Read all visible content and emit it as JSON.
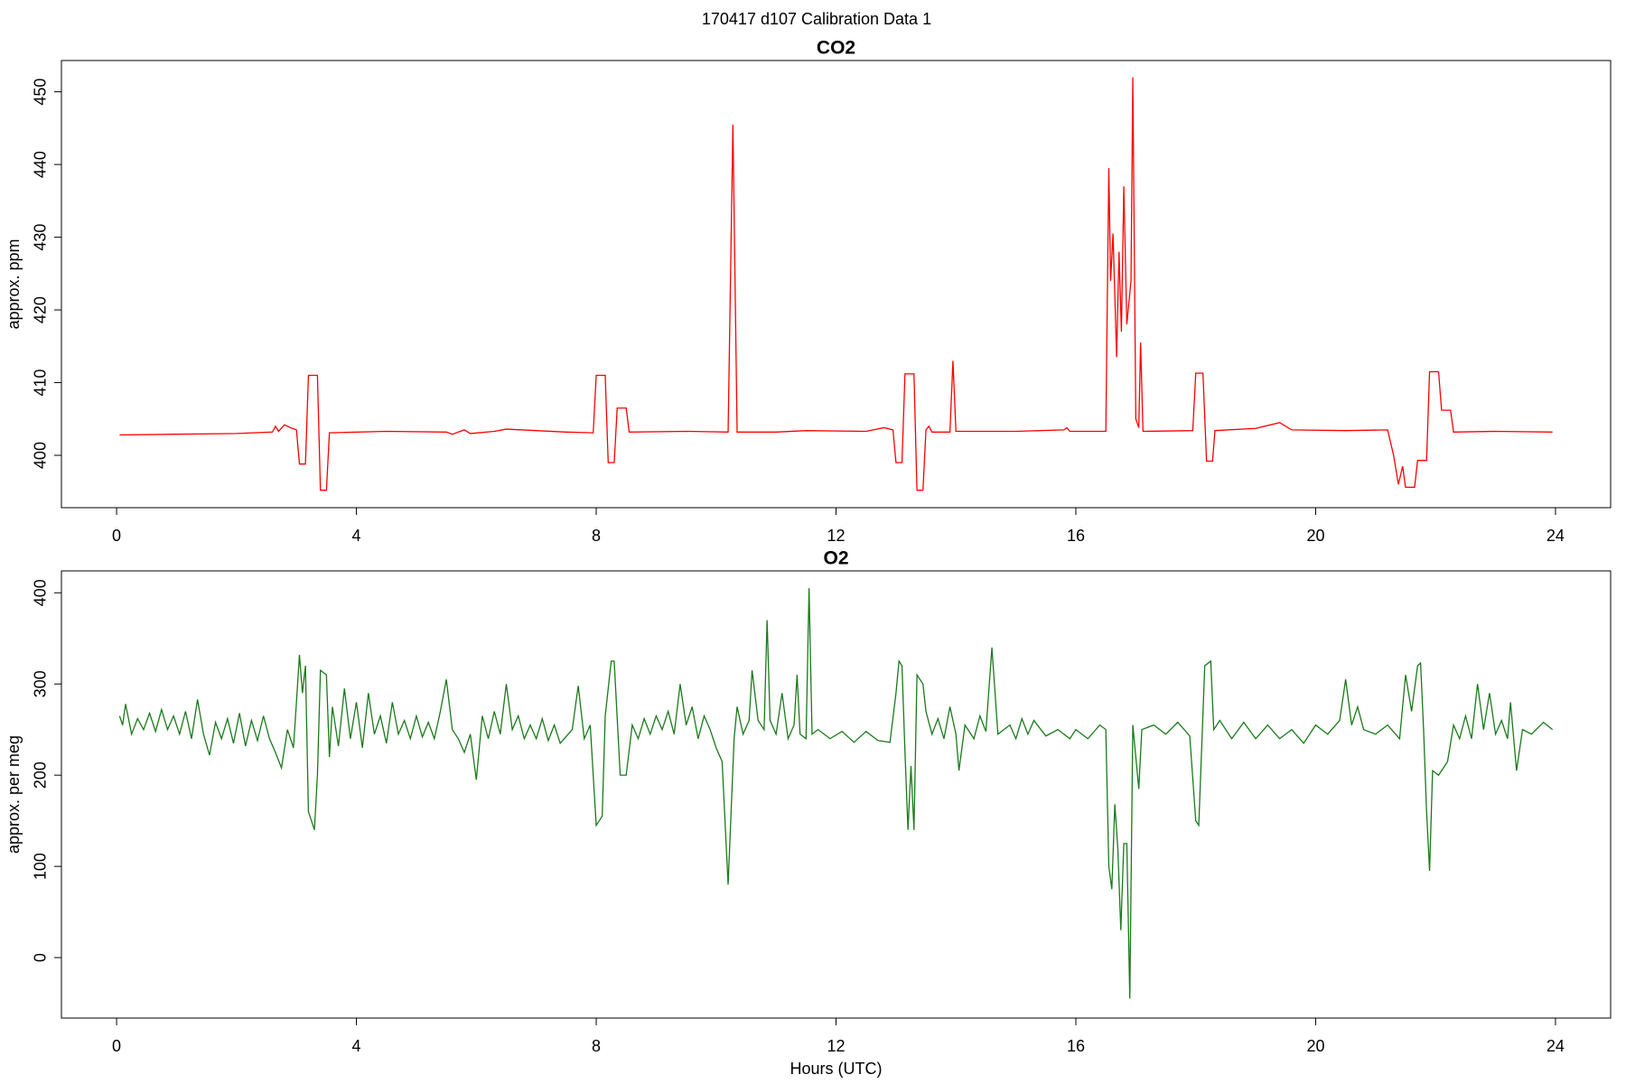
{
  "title": "170417   d107   Calibration Data 1",
  "chart_data": [
    {
      "type": "line",
      "title": "CO2",
      "ylabel": "approx. ppm",
      "color": "#ff0000",
      "xlim": [
        -0.92,
        24.92
      ],
      "xticks": [
        0,
        4,
        8,
        12,
        16,
        20,
        24
      ],
      "ylim": [
        392.8,
        454.3
      ],
      "yticks": [
        400,
        410,
        420,
        430,
        440,
        450
      ],
      "x": [
        0.05,
        1,
        2,
        2.6,
        2.65,
        2.7,
        2.8,
        2.9,
        3.0,
        3.05,
        3.15,
        3.2,
        3.35,
        3.4,
        3.5,
        3.55,
        4.5,
        5.5,
        5.6,
        5.8,
        5.9,
        6.3,
        6.5,
        7,
        7.5,
        7.95,
        8.0,
        8.15,
        8.2,
        8.3,
        8.35,
        8.5,
        8.55,
        9.5,
        10.2,
        10.28,
        10.35,
        11,
        11.5,
        12.5,
        12.8,
        12.95,
        13.0,
        13.1,
        13.15,
        13.3,
        13.35,
        13.45,
        13.5,
        13.55,
        13.6,
        13.9,
        13.95,
        14.0,
        15,
        15.8,
        15.85,
        15.9,
        16.5,
        16.55,
        16.58,
        16.62,
        16.68,
        16.72,
        16.76,
        16.8,
        16.85,
        16.92,
        16.95,
        17.0,
        17.05,
        17.08,
        17.12,
        17.95,
        18.0,
        18.12,
        18.18,
        18.28,
        18.32,
        19,
        19.4,
        19.6,
        20.5,
        21.2,
        21.3,
        21.38,
        21.45,
        21.5,
        21.65,
        21.7,
        21.85,
        21.9,
        22.05,
        22.1,
        22.25,
        22.3,
        23,
        23.95
      ],
      "values": [
        402.8,
        402.9,
        403.0,
        403.2,
        404,
        403.3,
        404.2,
        403.8,
        403.5,
        398.8,
        398.8,
        411,
        411,
        395.2,
        395.2,
        403.1,
        403.3,
        403.2,
        402.9,
        403.5,
        403,
        403.3,
        403.6,
        403.4,
        403.2,
        403.1,
        411,
        411,
        399,
        399,
        406.5,
        406.5,
        403.2,
        403.3,
        403.2,
        445.5,
        403.2,
        403.2,
        403.4,
        403.3,
        403.8,
        403.5,
        399,
        399,
        411.2,
        411.2,
        395.2,
        395.2,
        403.5,
        404,
        403.2,
        403.2,
        413,
        403.3,
        403.3,
        403.5,
        403.8,
        403.3,
        403.3,
        439.5,
        424,
        430.5,
        413.5,
        428,
        417,
        437,
        418,
        424,
        452,
        405,
        403.8,
        415.5,
        403.3,
        403.4,
        411.3,
        411.3,
        399.2,
        399.2,
        403.4,
        403.7,
        404.5,
        403.5,
        403.4,
        403.5,
        400,
        396,
        398.5,
        395.6,
        395.6,
        399.3,
        399.3,
        411.5,
        411.5,
        406.2,
        406.2,
        403.2,
        403.3,
        403.2
      ]
    },
    {
      "type": "line",
      "title": "O2",
      "ylabel": "approx. per meg",
      "xlabel": "Hours (UTC)",
      "color": "#1a7a1a",
      "xlim": [
        -0.92,
        24.92
      ],
      "xticks": [
        0,
        4,
        8,
        12,
        16,
        20,
        24
      ],
      "ylim": [
        -66.3,
        424
      ],
      "yticks": [
        0,
        100,
        200,
        300,
        400
      ],
      "x": [
        0.05,
        0.1,
        0.15,
        0.25,
        0.35,
        0.45,
        0.55,
        0.65,
        0.75,
        0.85,
        0.95,
        1.05,
        1.15,
        1.25,
        1.35,
        1.45,
        1.55,
        1.65,
        1.75,
        1.85,
        1.95,
        2.05,
        2.15,
        2.25,
        2.35,
        2.45,
        2.55,
        2.65,
        2.75,
        2.85,
        2.95,
        3.0,
        3.05,
        3.1,
        3.15,
        3.2,
        3.3,
        3.35,
        3.4,
        3.5,
        3.55,
        3.6,
        3.7,
        3.8,
        3.9,
        4.0,
        4.1,
        4.2,
        4.3,
        4.4,
        4.5,
        4.6,
        4.7,
        4.8,
        4.9,
        5.0,
        5.1,
        5.2,
        5.3,
        5.4,
        5.5,
        5.6,
        5.7,
        5.8,
        5.9,
        6.0,
        6.1,
        6.2,
        6.3,
        6.4,
        6.5,
        6.6,
        6.7,
        6.8,
        6.9,
        7.0,
        7.1,
        7.2,
        7.3,
        7.4,
        7.6,
        7.7,
        7.8,
        7.9,
        8.0,
        8.1,
        8.15,
        8.25,
        8.3,
        8.4,
        8.5,
        8.6,
        8.7,
        8.8,
        8.9,
        9.0,
        9.1,
        9.2,
        9.3,
        9.4,
        9.5,
        9.6,
        9.7,
        9.8,
        9.9,
        10.0,
        10.1,
        10.2,
        10.3,
        10.35,
        10.45,
        10.55,
        10.6,
        10.7,
        10.8,
        10.85,
        10.9,
        11.0,
        11.1,
        11.2,
        11.3,
        11.35,
        11.4,
        11.5,
        11.55,
        11.6,
        11.7,
        11.9,
        12.1,
        12.3,
        12.5,
        12.7,
        12.9,
        13.0,
        13.05,
        13.1,
        13.15,
        13.2,
        13.25,
        13.3,
        13.35,
        13.45,
        13.5,
        13.6,
        13.7,
        13.8,
        13.9,
        14.0,
        14.05,
        14.15,
        14.3,
        14.4,
        14.5,
        14.6,
        14.7,
        14.9,
        15.0,
        15.1,
        15.2,
        15.3,
        15.5,
        15.7,
        15.9,
        16.0,
        16.2,
        16.4,
        16.5,
        16.55,
        16.6,
        16.65,
        16.7,
        16.75,
        16.8,
        16.85,
        16.9,
        16.95,
        17.05,
        17.1,
        17.3,
        17.5,
        17.7,
        17.9,
        18.0,
        18.05,
        18.15,
        18.25,
        18.3,
        18.4,
        18.6,
        18.8,
        19.0,
        19.2,
        19.4,
        19.6,
        19.8,
        20.0,
        20.2,
        20.4,
        20.5,
        20.6,
        20.7,
        20.8,
        21.0,
        21.2,
        21.4,
        21.5,
        21.6,
        21.7,
        21.75,
        21.8,
        21.85,
        21.9,
        21.95,
        22.05,
        22.2,
        22.3,
        22.4,
        22.5,
        22.6,
        22.7,
        22.8,
        22.9,
        23.0,
        23.1,
        23.2,
        23.25,
        23.35,
        23.45,
        23.6,
        23.8,
        23.95
      ],
      "values": [
        265,
        255,
        278,
        245,
        262,
        250,
        268,
        248,
        272,
        250,
        265,
        245,
        270,
        240,
        283,
        245,
        222,
        258,
        240,
        262,
        235,
        268,
        232,
        260,
        238,
        265,
        240,
        225,
        208,
        250,
        230,
        280,
        332,
        290,
        320,
        160,
        140,
        200,
        315,
        310,
        220,
        275,
        232,
        295,
        240,
        280,
        230,
        290,
        245,
        265,
        235,
        280,
        245,
        260,
        240,
        265,
        242,
        258,
        240,
        270,
        305,
        250,
        240,
        225,
        245,
        195,
        265,
        240,
        270,
        245,
        300,
        250,
        265,
        240,
        255,
        240,
        262,
        238,
        255,
        235,
        250,
        298,
        240,
        255,
        145,
        155,
        265,
        325,
        325,
        200,
        200,
        255,
        240,
        262,
        245,
        265,
        250,
        270,
        245,
        300,
        255,
        275,
        240,
        265,
        250,
        230,
        215,
        80,
        240,
        275,
        245,
        260,
        315,
        260,
        250,
        370,
        260,
        245,
        290,
        240,
        255,
        310,
        245,
        240,
        405,
        245,
        250,
        240,
        248,
        236,
        248,
        238,
        236,
        290,
        325,
        320,
        225,
        140,
        210,
        140,
        310,
        300,
        270,
        245,
        262,
        240,
        275,
        245,
        205,
        255,
        240,
        265,
        248,
        340,
        245,
        255,
        240,
        262,
        245,
        260,
        243,
        250,
        240,
        250,
        240,
        255,
        250,
        100,
        75,
        168,
        120,
        30,
        125,
        125,
        -45,
        255,
        185,
        250,
        255,
        245,
        258,
        243,
        150,
        145,
        320,
        325,
        250,
        260,
        240,
        258,
        240,
        255,
        240,
        250,
        235,
        255,
        245,
        260,
        305,
        255,
        275,
        250,
        245,
        255,
        240,
        310,
        270,
        320,
        323,
        250,
        160,
        95,
        205,
        200,
        215,
        255,
        240,
        265,
        240,
        300,
        250,
        290,
        245,
        260,
        240,
        280,
        205,
        250,
        245,
        258,
        250
      ]
    }
  ]
}
